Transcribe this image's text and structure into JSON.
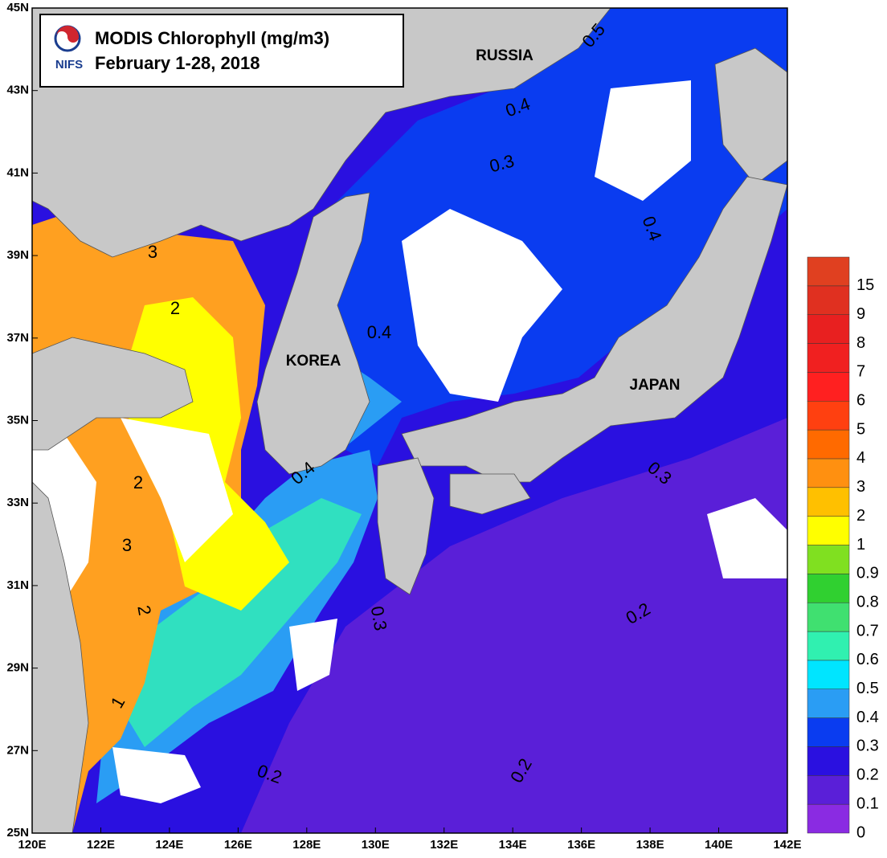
{
  "map": {
    "title": "MODIS Chlorophyll (mg/m3)",
    "subtitle": "February 1-28, 2018",
    "logo_text": "NIFS",
    "lonlim": [
      120,
      142
    ],
    "latlim": [
      25,
      45
    ],
    "lon_ticks": [
      {
        "value": 120,
        "label": "120E"
      },
      {
        "value": 122,
        "label": "122E"
      },
      {
        "value": 124,
        "label": "124E"
      },
      {
        "value": 126,
        "label": "126E"
      },
      {
        "value": 128,
        "label": "128E"
      },
      {
        "value": 130,
        "label": "130E"
      },
      {
        "value": 132,
        "label": "132E"
      },
      {
        "value": 134,
        "label": "134E"
      },
      {
        "value": 136,
        "label": "136E"
      },
      {
        "value": 138,
        "label": "138E"
      },
      {
        "value": 140,
        "label": "140E"
      },
      {
        "value": 142,
        "label": "142E"
      }
    ],
    "lat_ticks": [
      {
        "value": 25,
        "label": "25N"
      },
      {
        "value": 27,
        "label": "27N"
      },
      {
        "value": 29,
        "label": "29N"
      },
      {
        "value": 31,
        "label": "31N"
      },
      {
        "value": 33,
        "label": "33N"
      },
      {
        "value": 35,
        "label": "35N"
      },
      {
        "value": 37,
        "label": "37N"
      },
      {
        "value": 39,
        "label": "39N"
      },
      {
        "value": 41,
        "label": "41N"
      },
      {
        "value": 43,
        "label": "43N"
      },
      {
        "value": 45,
        "label": "45N"
      }
    ],
    "regions": [
      "RUSSIA",
      "KOREA",
      "JAPAN"
    ],
    "contour_labels": [
      "0.5",
      "0.4",
      "0.3",
      "0.4",
      "0.4",
      "0.4",
      "0.3",
      "0.3",
      "0.2",
      "0.2",
      "0.2",
      "3",
      "2",
      "2",
      "3",
      "2",
      "1"
    ],
    "colorbar": {
      "labels": [
        0,
        0.1,
        0.2,
        0.3,
        0.4,
        0.5,
        0.6,
        0.7,
        0.8,
        0.9,
        1,
        2,
        3,
        4,
        5,
        6,
        7,
        8,
        9,
        15
      ],
      "colors": [
        "#8a2be2",
        "#5a1fd8",
        "#2a10e0",
        "#0a3cf0",
        "#2a9df4",
        "#00e5ff",
        "#30f0b0",
        "#40e070",
        "#30d030",
        "#80e020",
        "#ffff00",
        "#ffc000",
        "#ff9010",
        "#ff6a00",
        "#ff4010",
        "#ff2020",
        "#f02020",
        "#e82020",
        "#e03020",
        "#e04020"
      ]
    }
  }
}
